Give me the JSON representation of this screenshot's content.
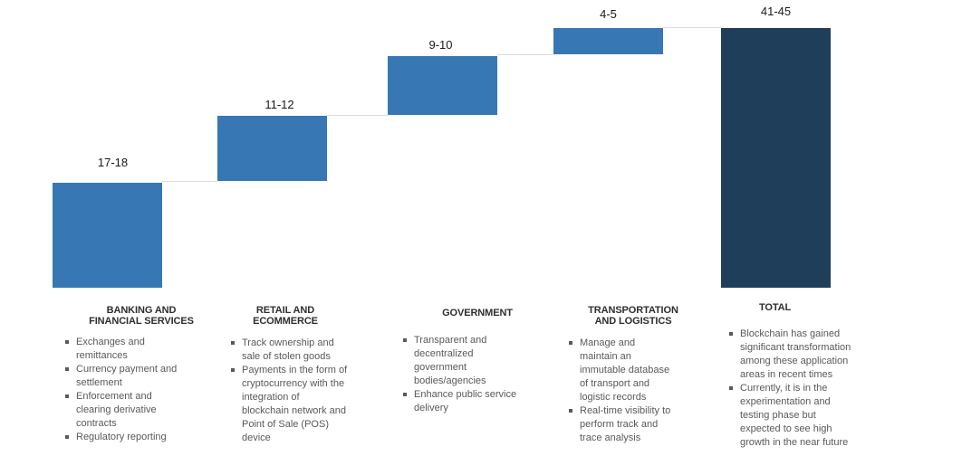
{
  "chart_data": {
    "type": "waterfall",
    "title": "",
    "xlabel": "",
    "ylabel": "",
    "ylim": [
      0,
      45
    ],
    "grid": false,
    "legend": false,
    "categories": [
      "Banking and Financial Services",
      "Retail and Ecommerce",
      "Government",
      "Transportation and Logistics",
      "Total"
    ],
    "segments": [
      {
        "category": "Banking and Financial Services",
        "label": "17-18",
        "value_range": [
          17,
          18
        ],
        "cumulative_start": 0,
        "cumulative_end": 17.5,
        "is_total": false
      },
      {
        "category": "Retail and Ecommerce",
        "label": "11-12",
        "value_range": [
          11,
          12
        ],
        "cumulative_start": 17.5,
        "cumulative_end": 29,
        "is_total": false
      },
      {
        "category": "Government",
        "label": "9-10",
        "value_range": [
          9,
          10
        ],
        "cumulative_start": 29,
        "cumulative_end": 38.5,
        "is_total": false
      },
      {
        "category": "Transportation and Logistics",
        "label": "4-5",
        "value_range": [
          4,
          5
        ],
        "cumulative_start": 38.5,
        "cumulative_end": 43,
        "is_total": false
      },
      {
        "category": "Total",
        "label": "41-45",
        "value_range": [
          41,
          45
        ],
        "cumulative_start": 0,
        "cumulative_end": 43,
        "is_total": true
      }
    ],
    "colors": {
      "segment_bar": "#3778B4",
      "total_bar": "#1F3E5A",
      "connector_line": "#DCDCDC",
      "value_label_text": "#1a1a1a",
      "category_title_text": "#2E2E2E",
      "bullet_text": "#595959"
    }
  },
  "columns": [
    {
      "title": "BANKING AND\nFINANCIAL SERVICES",
      "bullets": [
        "Exchanges and\nremittances",
        "Currency payment and\nsettlement",
        "Enforcement and\nclearing derivative\ncontracts",
        "Regulatory reporting"
      ]
    },
    {
      "title": "RETAIL AND\nECOMMERCE",
      "bullets": [
        "Track ownership and\nsale of stolen goods",
        "Payments in the form of\ncryptocurrency with the\nintegration of\nblockchain network and\nPoint of Sale (POS)\ndevice"
      ]
    },
    {
      "title": "GOVERNMENT",
      "bullets": [
        "Transparent and\ndecentralized\ngovernment\nbodies/agencies",
        "Enhance public service\ndelivery"
      ]
    },
    {
      "title": "TRANSPORTATION\nAND LOGISTICS",
      "bullets": [
        "Manage and\nmaintain an\nimmutable database\nof transport and\nlogistic records",
        "Real-time visibility to\nperform track and\ntrace analysis"
      ]
    },
    {
      "title": "TOTAL",
      "bullets": [
        "Blockchain has gained\nsignificant transformation\namong these application\nareas in recent times",
        "Currently, it is in the\nexperimentation and\ntesting phase but\nexpected to see high\ngrowth in the near future"
      ]
    }
  ]
}
